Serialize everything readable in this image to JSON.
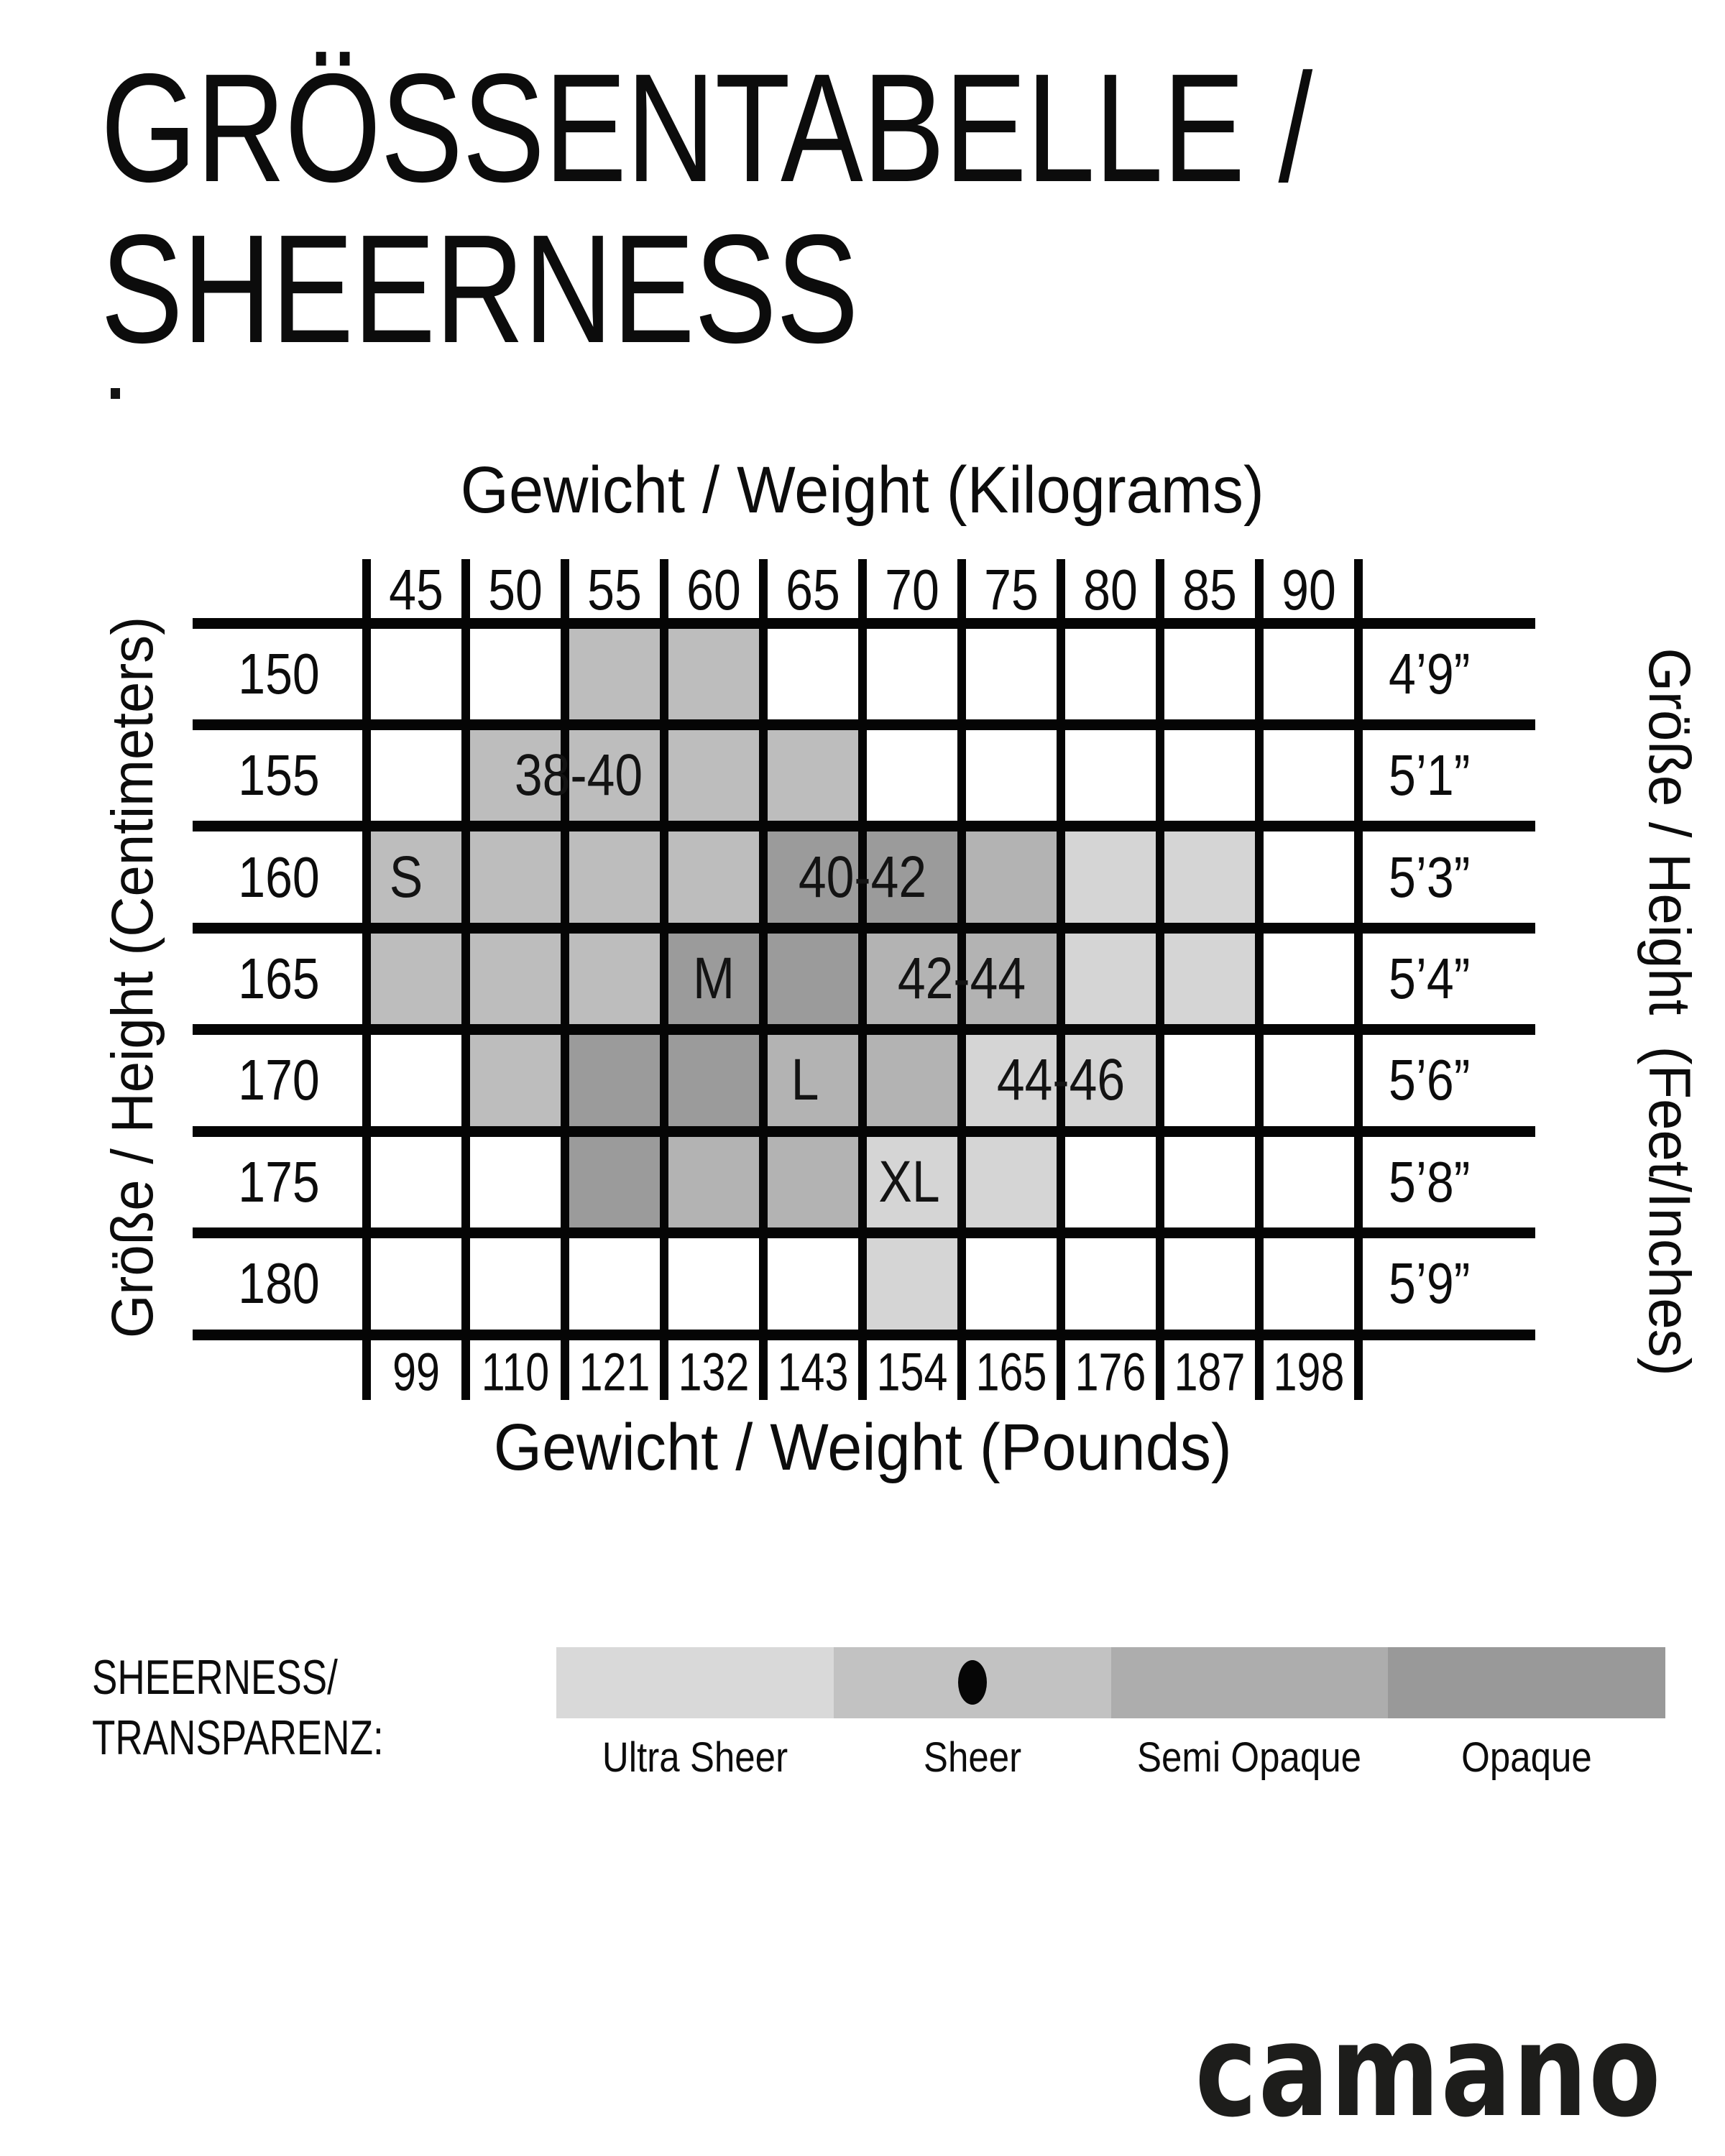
{
  "title": {
    "line1": "GRÖSSENTABELLE /",
    "line2": "SHEERNESS"
  },
  "axis_titles": {
    "top": "Gewicht / Weight (Kilograms)",
    "bottom": "Gewicht / Weight (Pounds)",
    "left": "Größe / Height (Centimeters)",
    "right": "Größe / Height  (Feet/Inches)"
  },
  "chart_data": {
    "type": "heatmap",
    "title": "GRÖSSENTABELLE / SHEERNESS",
    "x_axis_top_label": "Gewicht / Weight (Kilograms)",
    "x_axis_bottom_label": "Gewicht / Weight (Pounds)",
    "y_axis_left_label": "Größe / Height (Centimeters)",
    "y_axis_right_label": "Größe / Height (Feet/Inches)",
    "x_kilograms": [
      "45",
      "50",
      "55",
      "60",
      "65",
      "70",
      "75",
      "80",
      "85",
      "90"
    ],
    "x_pounds": [
      "99",
      "110",
      "121",
      "132",
      "143",
      "154",
      "165",
      "176",
      "187",
      "198"
    ],
    "y_centimeters": [
      "150",
      "155",
      "160",
      "165",
      "170",
      "175",
      "180"
    ],
    "y_feet_inches": [
      "4’9”",
      "5’1”",
      "5’3”",
      "5’4”",
      "5’6”",
      "5’8”",
      "5’9”"
    ],
    "cell_size_by_row": [
      [
        "",
        "",
        "S",
        "S",
        "",
        "",
        "",
        "",
        "",
        ""
      ],
      [
        "",
        "S",
        "S",
        "S",
        "S",
        "",
        "",
        "",
        "",
        ""
      ],
      [
        "S",
        "S",
        "S",
        "S",
        "M",
        "M",
        "L",
        "XL",
        "XL",
        ""
      ],
      [
        "S",
        "S",
        "S",
        "M",
        "M",
        "L",
        "L",
        "XL",
        "XL",
        ""
      ],
      [
        "",
        "S",
        "M",
        "M",
        "L",
        "L",
        "XL",
        "XL",
        "",
        ""
      ],
      [
        "",
        "",
        "M",
        "L",
        "L",
        "XL",
        "XL",
        "",
        "",
        ""
      ],
      [
        "",
        "",
        "",
        "",
        "",
        "XL",
        "",
        "",
        "",
        ""
      ]
    ],
    "sizes": [
      {
        "code": "S",
        "german_size": "38-40",
        "color": "#bdbdbd",
        "letter_label": {
          "row": 2,
          "col": 0.4
        },
        "range_label": {
          "row": 1,
          "col": 2.14
        }
      },
      {
        "code": "M",
        "german_size": "40-42",
        "color": "#9b9b9b",
        "letter_label": {
          "row": 3,
          "col": 3.5
        },
        "range_label": {
          "row": 2,
          "col": 5.0
        }
      },
      {
        "code": "L",
        "german_size": "42-44",
        "color": "#b3b3b3",
        "letter_label": {
          "row": 4,
          "col": 4.42
        },
        "range_label": {
          "row": 3,
          "col": 6.0
        }
      },
      {
        "code": "XL",
        "german_size": "44-46",
        "color": "#d5d5d5",
        "letter_label": {
          "row": 5,
          "col": 5.47
        },
        "range_label": {
          "row": 4,
          "col": 7.0
        }
      }
    ]
  },
  "legend": {
    "title_line1": "SHEERNESS/",
    "title_line2": "TRANSPARENZ:",
    "items": [
      {
        "label": "Ultra Sheer",
        "color": "#d9d9d9",
        "selected": false
      },
      {
        "label": "Sheer",
        "color": "#c2c2c2",
        "selected": true
      },
      {
        "label": "Semi Opaque",
        "color": "#adadad",
        "selected": false
      },
      {
        "label": "Opaque",
        "color": "#999999",
        "selected": false
      }
    ]
  },
  "brand": "camano"
}
